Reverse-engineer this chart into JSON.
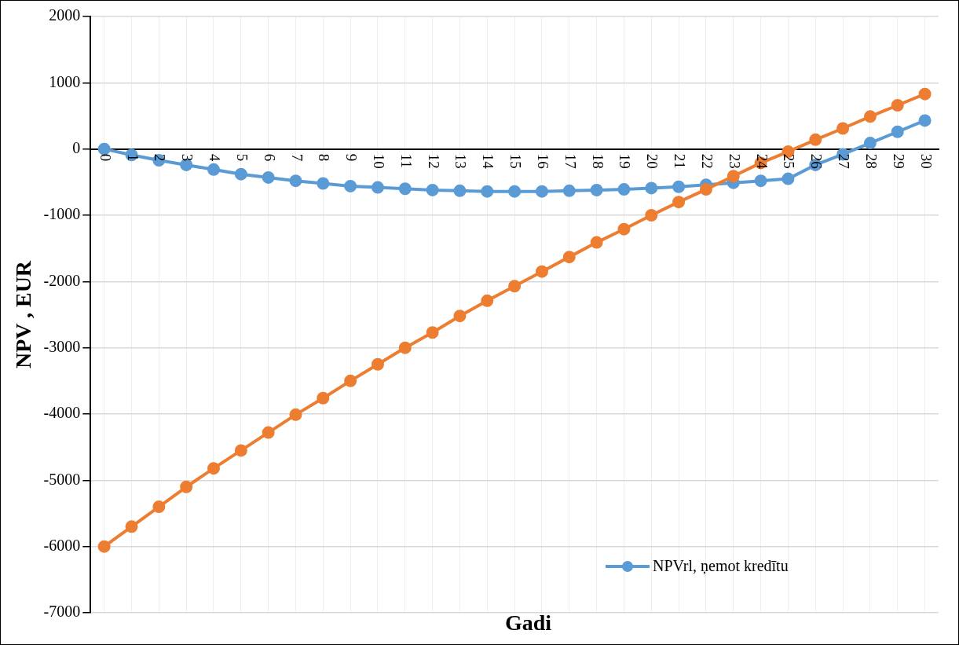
{
  "chart_data": {
    "type": "line",
    "xlabel": "Gadi",
    "ylabel": "NPV , EUR",
    "categories": [
      "0",
      "1",
      "2",
      "3",
      "4",
      "5",
      "6",
      "7",
      "8",
      "9",
      "10",
      "11",
      "12",
      "13",
      "14",
      "15",
      "16",
      "17",
      "18",
      "19",
      "20",
      "21",
      "22",
      "23",
      "24",
      "25",
      "26",
      "27",
      "28",
      "29",
      "30"
    ],
    "series": [
      {
        "name": "NPVrl, ņemot kredītu",
        "color": "#5b9bd5",
        "values": [
          0,
          -90,
          -170,
          -240,
          -310,
          -380,
          -430,
          -480,
          -520,
          -560,
          -580,
          -600,
          -620,
          -630,
          -640,
          -640,
          -640,
          -630,
          -620,
          -610,
          -590,
          -570,
          -540,
          -510,
          -480,
          -450,
          -240,
          -80,
          90,
          260,
          430
        ]
      },
      {
        "color": "#ed7d31",
        "values": [
          -6000,
          -5700,
          -5400,
          -5100,
          -4820,
          -4550,
          -4280,
          -4010,
          -3760,
          -3500,
          -3250,
          -3000,
          -2770,
          -2520,
          -2290,
          -2070,
          -1850,
          -1630,
          -1410,
          -1210,
          -1000,
          -800,
          -610,
          -410,
          -210,
          -40,
          140,
          310,
          490,
          660,
          830
        ]
      }
    ],
    "ylim": [
      -7000,
      2000
    ],
    "yticks": [
      -7000,
      -6000,
      -5000,
      -4000,
      -3000,
      -2000,
      -1000,
      0,
      1000,
      2000
    ],
    "grid": true,
    "legend": "bottom right",
    "marker": "circle",
    "line_style": "solid"
  }
}
